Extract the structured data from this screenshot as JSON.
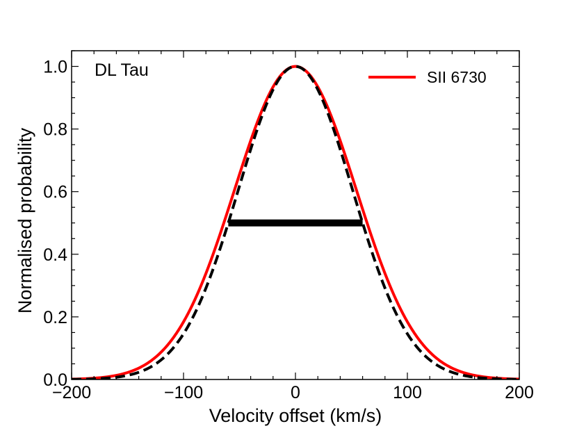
{
  "chart_data": {
    "type": "line",
    "xlabel": "Velocity offset (km/s)",
    "ylabel": "Normalised probability",
    "xlim": [
      -200,
      200
    ],
    "ylim": [
      0,
      1.05
    ],
    "x_ticks": [
      -200,
      -100,
      0,
      100,
      200
    ],
    "x_tick_labels": [
      "−200",
      "−100",
      "0",
      "100",
      "200"
    ],
    "y_ticks": [
      0.0,
      0.2,
      0.4,
      0.6,
      0.8,
      1.0
    ],
    "y_tick_labels": [
      "0.0",
      "0.2",
      "0.4",
      "0.6",
      "0.8",
      "1.0"
    ],
    "annotation": "DL Tau",
    "legend_position": "top-right",
    "series": [
      {
        "name": "SII 6730",
        "style": "solid",
        "color": "#ff0000",
        "center": 0,
        "fwhm": 128,
        "x": [
          -200,
          -180,
          -160,
          -140,
          -120,
          -100,
          -80,
          -60,
          -40,
          -20,
          0,
          20,
          40,
          60,
          80,
          100,
          120,
          140,
          160,
          180,
          200
        ],
        "y": [
          0.002,
          0.005,
          0.018,
          0.05,
          0.117,
          0.237,
          0.416,
          0.63,
          0.823,
          0.952,
          1.0,
          0.952,
          0.823,
          0.63,
          0.416,
          0.237,
          0.117,
          0.05,
          0.018,
          0.005,
          0.002
        ]
      },
      {
        "style": "dashed",
        "color": "#000000",
        "center": 0,
        "fwhm": 120,
        "x": [
          -200,
          -180,
          -160,
          -140,
          -120,
          -100,
          -80,
          -60,
          -40,
          -20,
          0,
          20,
          40,
          60,
          80,
          100,
          120,
          140,
          160,
          180,
          200
        ],
        "y": [
          0.0,
          0.002,
          0.007,
          0.021,
          0.063,
          0.146,
          0.292,
          0.5,
          0.735,
          0.914,
          1.0,
          0.914,
          0.735,
          0.5,
          0.292,
          0.146,
          0.063,
          0.021,
          0.007,
          0.002,
          0.0
        ]
      }
    ],
    "fwhm_bar": {
      "x_start": -60,
      "x_end": 60,
      "y": 0.5,
      "color": "#000000"
    },
    "grid": false
  }
}
